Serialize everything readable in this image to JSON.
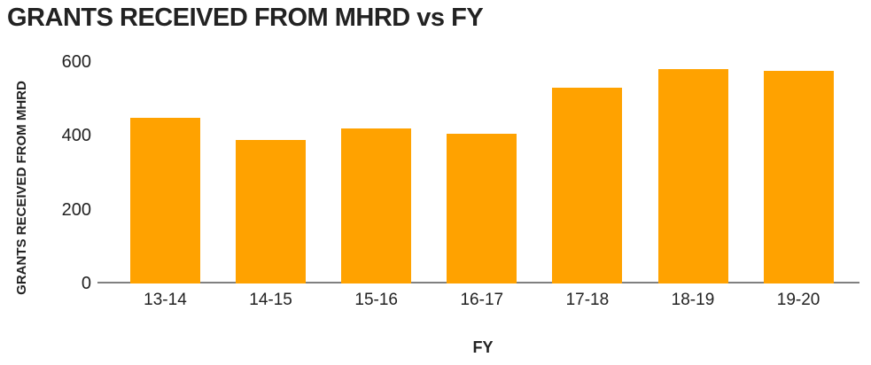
{
  "title": "GRANTS RECEIVED FROM MHRD vs FY",
  "colors": {
    "bar": "#FFA200",
    "axis_line": "#808080",
    "text": "#222222",
    "background": "#FFFFFF"
  },
  "chart_data": {
    "type": "bar",
    "title": "GRANTS RECEIVED FROM MHRD vs FY",
    "xlabel": "FY",
    "ylabel": "GRANTS RECEIVED FROM MHRD",
    "categories": [
      "13-14",
      "14-15",
      "15-16",
      "16-17",
      "17-18",
      "18-19",
      "19-20"
    ],
    "values": [
      450,
      390,
      420,
      405,
      530,
      580,
      575
    ],
    "yticks": [
      0,
      200,
      400,
      600
    ],
    "ylim": [
      0,
      600
    ],
    "bar_color": "#FFA200",
    "grid": false,
    "legend": false
  }
}
